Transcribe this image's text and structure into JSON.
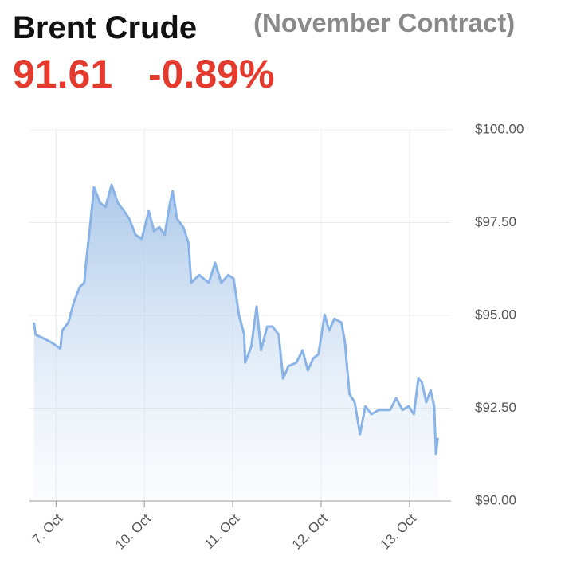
{
  "chart_data": {
    "type": "area",
    "title": "Brent Crude",
    "subtitle": "(November Contract)",
    "price": 91.61,
    "change": "-0.89%",
    "color": "#8ab4e8",
    "grid": true,
    "x": [
      -0.25,
      -0.23,
      -0.14,
      -0.05,
      0.05,
      0.07,
      0.14,
      0.2,
      0.27,
      0.32,
      0.34,
      0.38,
      0.43,
      0.5,
      0.56,
      0.63,
      0.7,
      0.77,
      0.83,
      0.9,
      0.97,
      1.05,
      1.11,
      1.17,
      1.23,
      1.29,
      1.32,
      1.37,
      1.44,
      1.5,
      1.53,
      1.62,
      1.73,
      1.8,
      1.87,
      1.95,
      2.01,
      2.07,
      2.13,
      2.14,
      2.21,
      2.27,
      2.32,
      2.39,
      2.45,
      2.52,
      2.57,
      2.63,
      2.72,
      2.79,
      2.85,
      2.91,
      2.97,
      3.04,
      3.09,
      3.15,
      3.23,
      3.27,
      3.32,
      3.38,
      3.44,
      3.5,
      3.57,
      3.65,
      3.78,
      3.85,
      3.92,
      3.99,
      4.05,
      4.1,
      4.14,
      4.19,
      4.24,
      4.28,
      4.3,
      4.32
    ],
    "values": [
      94.81,
      94.48,
      94.38,
      94.27,
      94.1,
      94.59,
      94.81,
      95.34,
      95.77,
      95.88,
      96.42,
      97.27,
      98.45,
      98.03,
      97.92,
      98.52,
      98.03,
      97.81,
      97.6,
      97.17,
      97.06,
      97.81,
      97.27,
      97.38,
      97.17,
      98.03,
      98.35,
      97.6,
      97.38,
      96.95,
      95.88,
      96.09,
      95.88,
      96.42,
      95.88,
      96.09,
      95.99,
      95.02,
      94.48,
      93.73,
      94.16,
      95.24,
      94.06,
      94.7,
      94.7,
      94.48,
      93.3,
      93.63,
      93.73,
      94.06,
      93.52,
      93.84,
      93.95,
      95.02,
      94.59,
      94.91,
      94.81,
      94.27,
      92.88,
      92.66,
      91.8,
      92.55,
      92.34,
      92.45,
      92.45,
      92.77,
      92.45,
      92.55,
      92.34,
      93.3,
      93.2,
      92.66,
      92.98,
      92.55,
      91.27,
      91.7
    ],
    "xlim": [
      -0.3,
      4.47
    ],
    "xticks": [
      {
        "value": 0,
        "label": "7. Oct"
      },
      {
        "value": 1,
        "label": "10. Oct"
      },
      {
        "value": 2,
        "label": "11. Oct"
      },
      {
        "value": 3,
        "label": "12. Oct"
      },
      {
        "value": 4,
        "label": "13. Oct"
      }
    ],
    "ylim": [
      90,
      100
    ],
    "yticks": [
      {
        "value": 90,
        "label": "$90.00"
      },
      {
        "value": 92.5,
        "label": "$92.50"
      },
      {
        "value": 95,
        "label": "$95.00"
      },
      {
        "value": 97.5,
        "label": "$97.50"
      },
      {
        "value": 100,
        "label": "$100.00"
      }
    ]
  }
}
